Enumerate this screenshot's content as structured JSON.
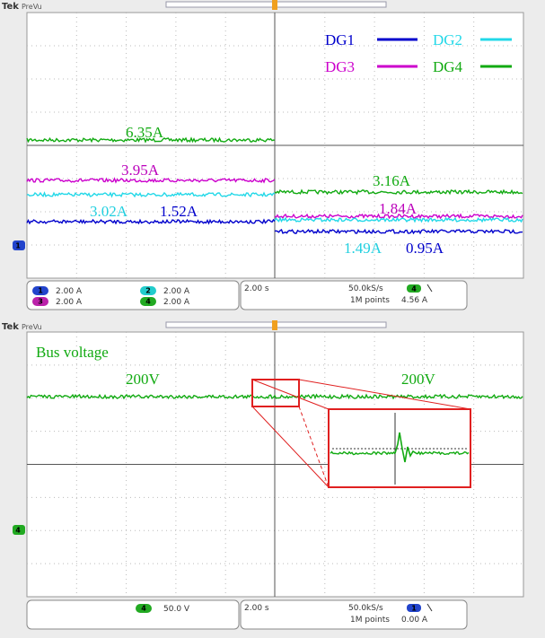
{
  "scope1": {
    "brand": "Tek",
    "mode": "PreVu",
    "marker": "1",
    "legend": [
      {
        "name": "DG1",
        "color": "#0000cc"
      },
      {
        "name": "DG2",
        "color": "#22d8e8"
      },
      {
        "name": "DG3",
        "color": "#cc00cc"
      },
      {
        "name": "DG4",
        "color": "#11aa11"
      }
    ],
    "labels": [
      "6.35A",
      "3.95A",
      "3.02A",
      "1.52A",
      "3.16A",
      "1.84A",
      "1.49A",
      "0.95A"
    ],
    "channels": [
      {
        "id": "1",
        "scale": "2.00 A"
      },
      {
        "id": "3",
        "scale": "2.00 A"
      },
      {
        "id": "2",
        "scale": "2.00 A"
      },
      {
        "id": "4",
        "scale": "2.00 A"
      }
    ],
    "timebase": "2.00 s",
    "rate": "50.0kS/s",
    "points": "1M points",
    "trigger_channel": "4",
    "trigger_level": "4.56 A"
  },
  "scope2": {
    "brand": "Tek",
    "mode": "PreVu",
    "marker": "4",
    "title": "Bus voltage",
    "labels": [
      "200V",
      "200V"
    ],
    "channels": [
      {
        "id": "4",
        "scale": "50.0 V"
      }
    ],
    "timebase": "2.00 s",
    "rate": "50.0kS/s",
    "points": "1M points",
    "trigger_channel": "1",
    "trigger_level": "0.00 A"
  }
}
